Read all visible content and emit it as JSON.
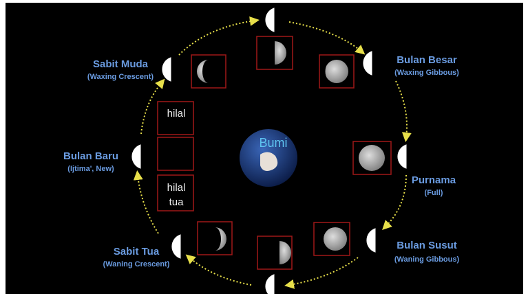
{
  "center": "Bumi",
  "hilal": "hilal",
  "hilal_tua": [
    "hilal",
    "tua"
  ],
  "phases": [
    {
      "name": "Sabit Muda",
      "english": "(Waxing Crescent)"
    },
    {
      "name": "Bulan Besar",
      "english": "(Waxing Gibbous)"
    },
    {
      "name": "Bulan Baru",
      "english": "(Ijtima', New)"
    },
    {
      "name": "Purnama",
      "english": "(Full)"
    },
    {
      "name": "Sabit Tua",
      "english": "(Waning Crescent)"
    },
    {
      "name": "Bulan Susut",
      "english": "(Waning Gibbous)"
    }
  ]
}
